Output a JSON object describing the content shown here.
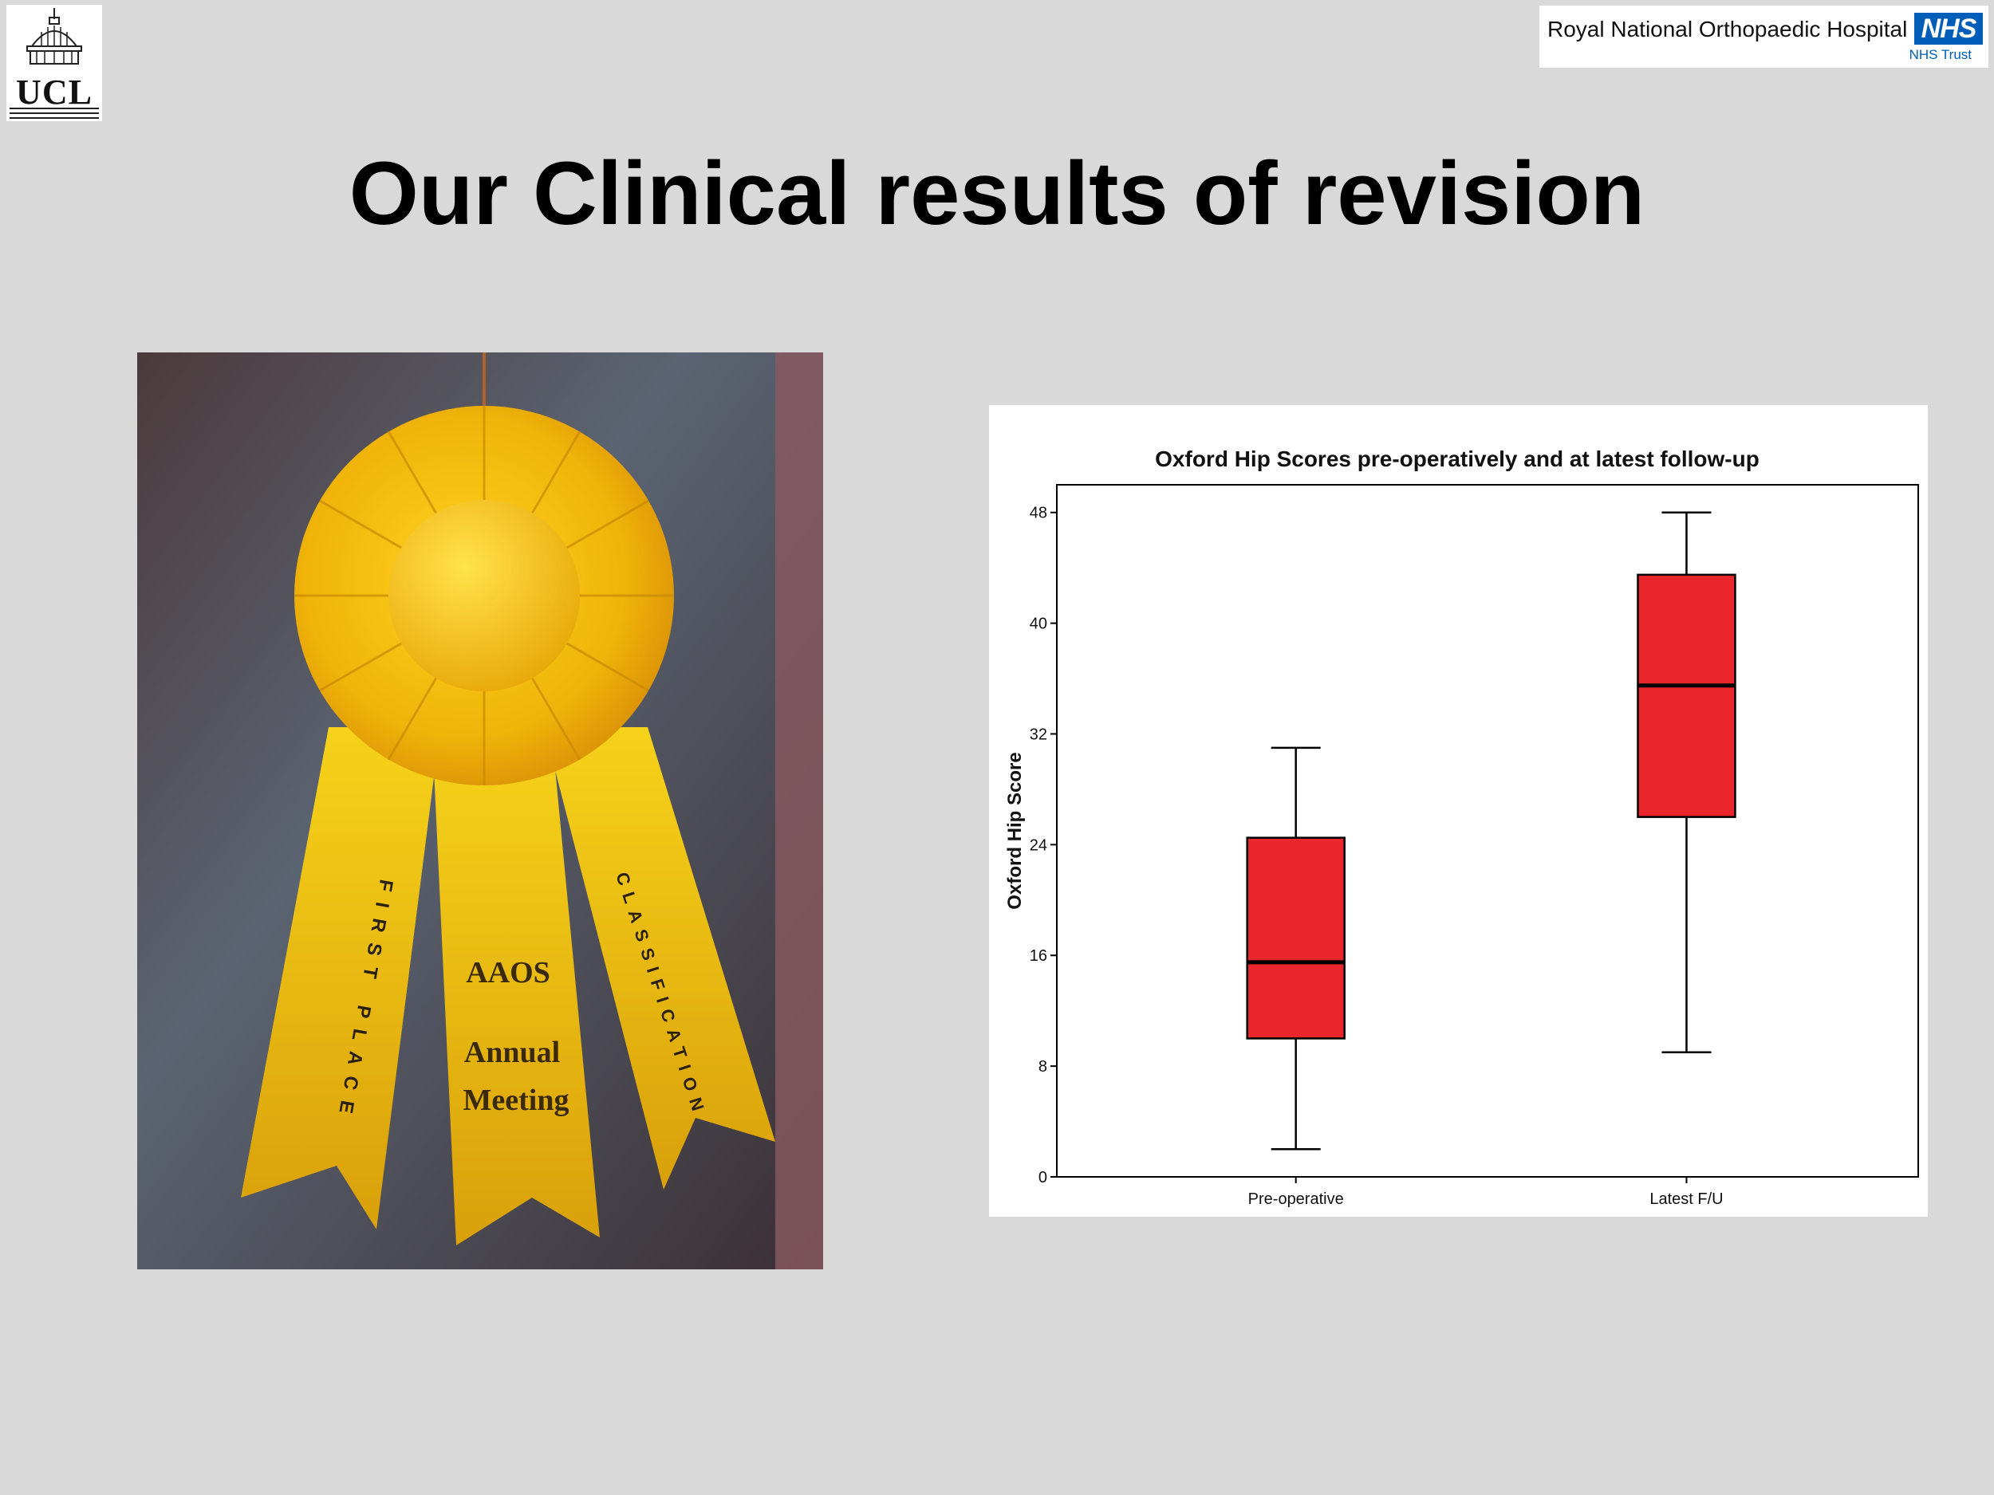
{
  "header": {
    "ucl_logo_text": "UCL",
    "hospital_name": "Royal National Orthopaedic Hospital",
    "nhs_logo": "NHS",
    "nhs_trust": "NHS Trust"
  },
  "slide": {
    "title": "Our Clinical results of revision"
  },
  "photo": {
    "ribbon_center": [
      "AAOS",
      "Annual",
      "Meeting"
    ],
    "ribbon_left": "FIRST PLACE",
    "ribbon_right": "CLASSIFICATION"
  },
  "colors": {
    "background": "#d9d9d9",
    "box_fill": "#e8262b",
    "ribbon": "#f2c20a",
    "nhs_blue": "#005eb8"
  },
  "chart_data": {
    "type": "box",
    "title": "Oxford Hip Scores pre-operatively and at latest follow-up",
    "xlabel": "",
    "ylabel": "Oxford Hip Score",
    "ylim": [
      0,
      50
    ],
    "yticks": [
      0,
      8,
      16,
      24,
      32,
      40,
      48
    ],
    "categories": [
      "Pre-operative",
      "Latest F/U"
    ],
    "boxes": [
      {
        "category": "Pre-operative",
        "min": 2,
        "q1": 10,
        "median": 15.5,
        "q3": 24.5,
        "max": 31
      },
      {
        "category": "Latest F/U",
        "min": 9,
        "q1": 26,
        "median": 35.5,
        "q3": 43.5,
        "max": 48
      }
    ],
    "grid": false,
    "legend": "none"
  }
}
